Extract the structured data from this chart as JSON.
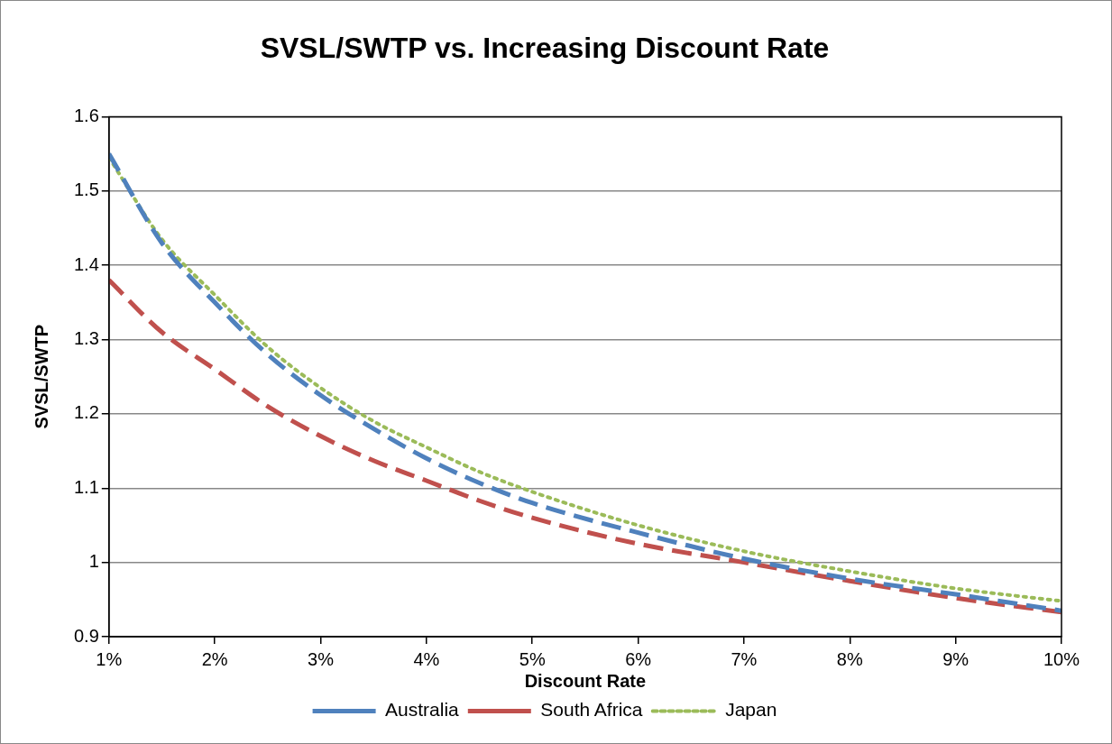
{
  "chart_data": {
    "type": "line",
    "title": "SVSL/SWTP vs. Increasing Discount Rate",
    "xlabel": "Discount Rate",
    "ylabel": "SVSL/SWTP",
    "x": [
      1,
      1.5,
      2,
      2.5,
      3,
      3.5,
      4,
      4.5,
      5,
      6,
      7,
      8,
      9,
      10
    ],
    "series": [
      {
        "name": "Australia",
        "color": "#4f81bd",
        "line_style": "dashed",
        "values": [
          1.55,
          1.43,
          1.35,
          1.28,
          1.225,
          1.18,
          1.14,
          1.107,
          1.08,
          1.04,
          1.005,
          0.978,
          0.957,
          0.935
        ]
      },
      {
        "name": "South Africa",
        "color": "#c0504d",
        "line_style": "dashed",
        "values": [
          1.38,
          1.31,
          1.26,
          1.21,
          1.17,
          1.137,
          1.11,
          1.083,
          1.06,
          1.025,
          1.0,
          0.975,
          0.952,
          0.933
        ]
      },
      {
        "name": "Japan",
        "color": "#9bbb59",
        "line_style": "dotted",
        "values": [
          1.545,
          1.435,
          1.36,
          1.29,
          1.235,
          1.19,
          1.155,
          1.122,
          1.095,
          1.05,
          1.015,
          0.988,
          0.965,
          0.948
        ]
      }
    ],
    "xlim": [
      1,
      10
    ],
    "xticks": [
      {
        "value": 1,
        "label": "1%"
      },
      {
        "value": 2,
        "label": "2%"
      },
      {
        "value": 3,
        "label": "3%"
      },
      {
        "value": 4,
        "label": "4%"
      },
      {
        "value": 5,
        "label": "5%"
      },
      {
        "value": 6,
        "label": "6%"
      },
      {
        "value": 7,
        "label": "7%"
      },
      {
        "value": 8,
        "label": "8%"
      },
      {
        "value": 9,
        "label": "9%"
      },
      {
        "value": 10,
        "label": "10%"
      }
    ],
    "ylim": [
      0.9,
      1.6
    ],
    "yticks": [
      0.9,
      1,
      1.1,
      1.2,
      1.3,
      1.4,
      1.5,
      1.6
    ],
    "grid": "y",
    "legend": "bottom",
    "marker": "none"
  }
}
